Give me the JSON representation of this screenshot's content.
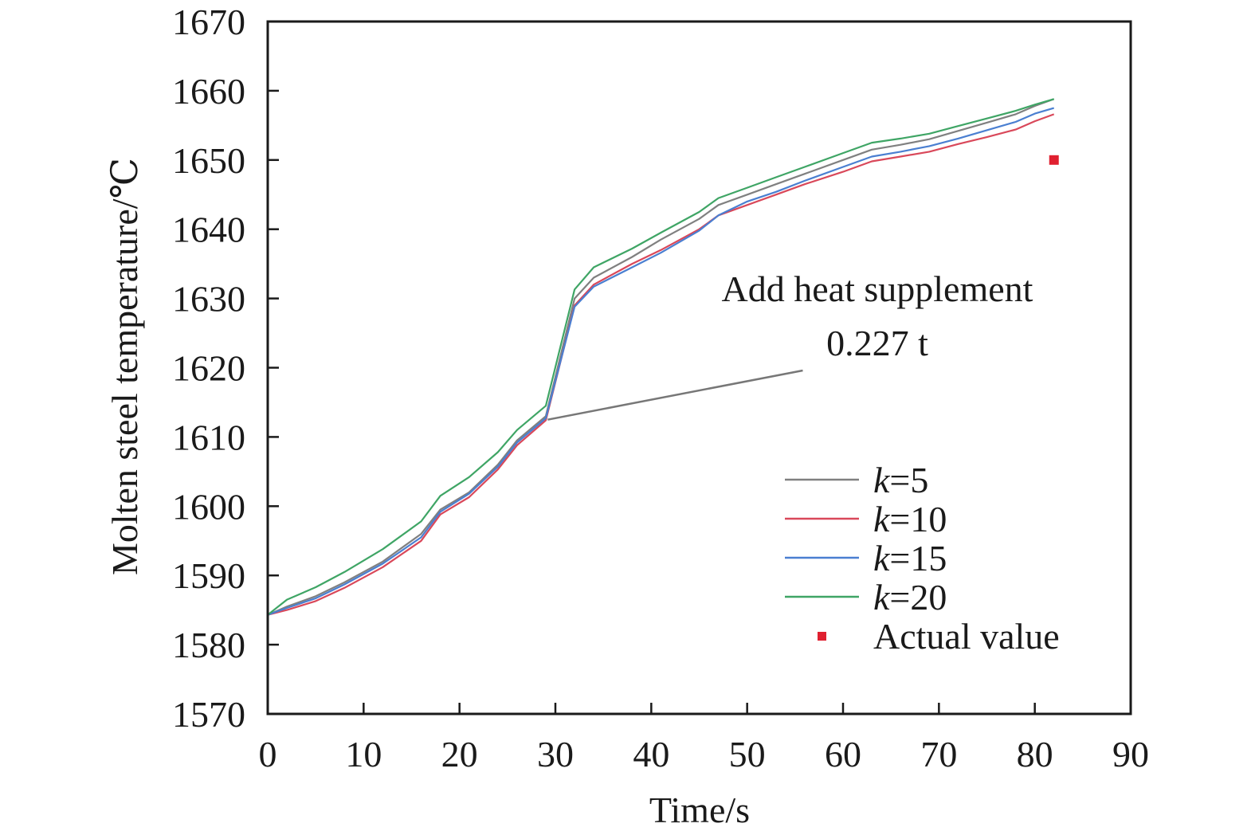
{
  "chart_data": {
    "type": "line",
    "title": "",
    "xlabel": "Time/s",
    "ylabel": "Molten steel temperature/℃",
    "xlim": [
      0,
      90
    ],
    "ylim": [
      1570,
      1670
    ],
    "xticks": [
      0,
      10,
      20,
      30,
      40,
      50,
      60,
      70,
      80,
      90
    ],
    "yticks": [
      1570,
      1580,
      1590,
      1600,
      1610,
      1620,
      1630,
      1640,
      1650,
      1660,
      1670
    ],
    "grid": false,
    "legend_position": "bottom-right",
    "x": [
      0,
      2,
      5,
      8,
      12,
      16,
      18,
      21,
      24,
      26,
      29,
      32,
      34,
      38,
      41,
      45,
      47,
      50,
      53,
      56,
      60,
      63,
      66,
      69,
      72,
      75,
      78,
      80,
      82
    ],
    "series": [
      {
        "name_prefix": "k",
        "name_suffix": "=5",
        "color": "#808080",
        "values": [
          1584.3,
          1585.5,
          1587,
          1589,
          1592,
          1596,
          1599.5,
          1602,
          1606,
          1609.5,
          1613,
          1630,
          1633,
          1636,
          1638.5,
          1641.5,
          1643.5,
          1645,
          1646.5,
          1648,
          1650,
          1651.5,
          1652.2,
          1653,
          1654.2,
          1655.4,
          1656.6,
          1657.8,
          1658.8
        ]
      },
      {
        "name_prefix": "k",
        "name_suffix": "=10",
        "color": "#d9485a",
        "values": [
          1584.3,
          1585,
          1586.3,
          1588.2,
          1591.2,
          1595,
          1598.8,
          1601.3,
          1605.3,
          1608.8,
          1612.4,
          1629,
          1632,
          1635,
          1637,
          1640,
          1642,
          1643.5,
          1645,
          1646.5,
          1648.3,
          1649.8,
          1650.5,
          1651.2,
          1652.3,
          1653.3,
          1654.4,
          1655.6,
          1656.6
        ]
      },
      {
        "name_prefix": "k",
        "name_suffix": "=15",
        "color": "#4a7fd1",
        "values": [
          1584.3,
          1585.3,
          1586.7,
          1588.7,
          1591.7,
          1595.5,
          1599.2,
          1601.8,
          1605.7,
          1609.2,
          1612.7,
          1628.8,
          1631.7,
          1634.5,
          1636.6,
          1639.8,
          1642,
          1644,
          1645.4,
          1647,
          1649,
          1650.5,
          1651.2,
          1652,
          1653.1,
          1654.3,
          1655.5,
          1656.7,
          1657.5
        ]
      },
      {
        "name_prefix": "k",
        "name_suffix": "=20",
        "color": "#3fa565",
        "values": [
          1584.3,
          1586.5,
          1588.3,
          1590.5,
          1593.8,
          1597.8,
          1601.5,
          1604.2,
          1607.8,
          1611,
          1614.5,
          1631.3,
          1634.5,
          1637.2,
          1639.5,
          1642.5,
          1644.5,
          1646,
          1647.5,
          1649,
          1651,
          1652.5,
          1653.1,
          1653.8,
          1654.9,
          1656,
          1657.1,
          1658,
          1658.8
        ]
      }
    ],
    "actual_value": {
      "label": "Actual value",
      "color": "#e02030",
      "x": 82,
      "y": 1650
    },
    "annotation": {
      "line1": "Add heat supplement",
      "line2": "0.227 t",
      "leader_from": [
        29.2,
        1612.5
      ],
      "leader_to": [
        55.8,
        1619.6
      ]
    }
  }
}
